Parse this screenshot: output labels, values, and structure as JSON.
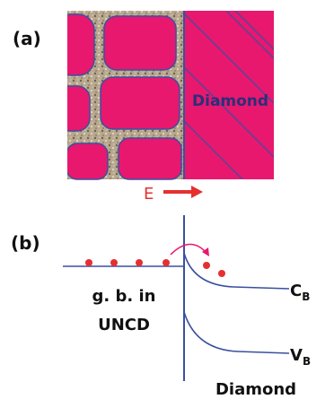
{
  "panel_a": {
    "label": "(a)",
    "region_label": "Diamond",
    "field_label": "E"
  },
  "panel_b": {
    "label": "(b)",
    "left_label_lines": [
      "g. b. in",
      "UNCD"
    ],
    "conduction_band": {
      "symbol": "C",
      "subscript": "B"
    },
    "valence_band": {
      "symbol": "V",
      "subscript": "B"
    },
    "bottom_label": "Diamond"
  }
}
